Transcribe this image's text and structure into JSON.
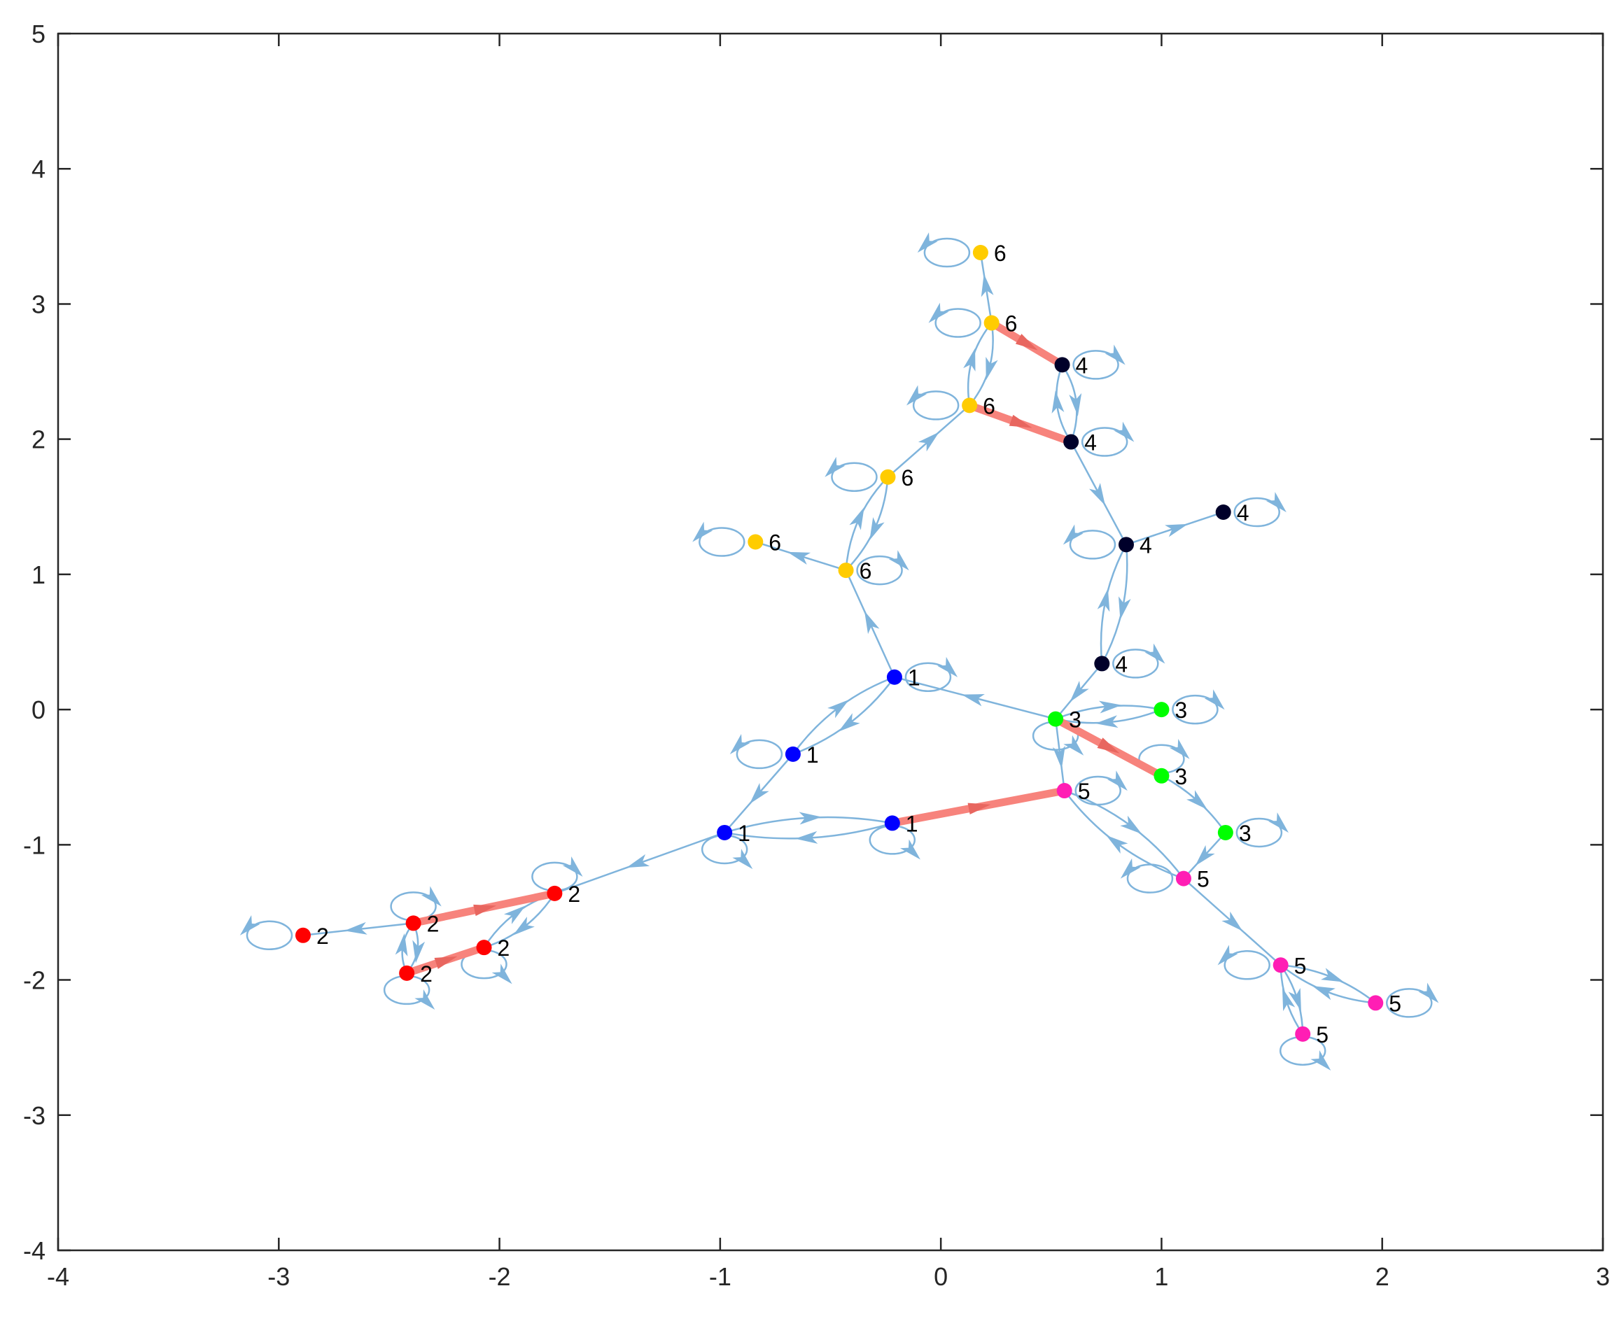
{
  "chart_data": {
    "type": "scatter",
    "xlim": [
      -4,
      3
    ],
    "ylim": [
      -4,
      5
    ],
    "x_ticks": [
      "-4",
      "-3",
      "-2",
      "-1",
      "0",
      "1",
      "2",
      "3"
    ],
    "y_ticks": [
      "-4",
      "-3",
      "-2",
      "-1",
      "0",
      "1",
      "2",
      "3",
      "4",
      "5"
    ],
    "grid": false,
    "colors": {
      "edge": "#7fb4dc",
      "highlight": "#f7837c",
      "1": "#0000ff",
      "2": "#ff0000",
      "3": "#00ff00",
      "4": "#00002a",
      "5": "#ff1eb4",
      "6": "#ffcc00"
    },
    "nodes": [
      {
        "id": "a1",
        "x": -0.21,
        "y": 0.24,
        "label": "1"
      },
      {
        "id": "a2",
        "x": -0.67,
        "y": -0.33,
        "label": "1"
      },
      {
        "id": "a3",
        "x": -0.98,
        "y": -0.91,
        "label": "1"
      },
      {
        "id": "a4",
        "x": -0.22,
        "y": -0.84,
        "label": "1"
      },
      {
        "id": "b1",
        "x": -1.75,
        "y": -1.36,
        "label": "2"
      },
      {
        "id": "b2",
        "x": -2.39,
        "y": -1.58,
        "label": "2"
      },
      {
        "id": "b3",
        "x": -2.07,
        "y": -1.76,
        "label": "2"
      },
      {
        "id": "b4",
        "x": -2.42,
        "y": -1.95,
        "label": "2"
      },
      {
        "id": "b5",
        "x": -2.89,
        "y": -1.67,
        "label": "2"
      },
      {
        "id": "c1",
        "x": 0.52,
        "y": -0.07,
        "label": "3"
      },
      {
        "id": "c2",
        "x": 1.0,
        "y": 0.0,
        "label": "3"
      },
      {
        "id": "c3",
        "x": 1.0,
        "y": -0.49,
        "label": "3"
      },
      {
        "id": "c4",
        "x": 1.29,
        "y": -0.91,
        "label": "3"
      },
      {
        "id": "d1",
        "x": 0.73,
        "y": 0.34,
        "label": "4"
      },
      {
        "id": "d2",
        "x": 0.84,
        "y": 1.22,
        "label": "4"
      },
      {
        "id": "d3",
        "x": 1.28,
        "y": 1.46,
        "label": "4"
      },
      {
        "id": "d4",
        "x": 0.59,
        "y": 1.98,
        "label": "4"
      },
      {
        "id": "d5",
        "x": 0.55,
        "y": 2.55,
        "label": "4"
      },
      {
        "id": "e1",
        "x": 0.56,
        "y": -0.6,
        "label": "5"
      },
      {
        "id": "e2",
        "x": 1.1,
        "y": -1.25,
        "label": "5"
      },
      {
        "id": "e3",
        "x": 1.54,
        "y": -1.89,
        "label": "5"
      },
      {
        "id": "e4",
        "x": 1.97,
        "y": -2.17,
        "label": "5"
      },
      {
        "id": "e5",
        "x": 1.64,
        "y": -2.4,
        "label": "5"
      },
      {
        "id": "f1",
        "x": -0.43,
        "y": 1.03,
        "label": "6"
      },
      {
        "id": "f2",
        "x": -0.84,
        "y": 1.24,
        "label": "6"
      },
      {
        "id": "f3",
        "x": -0.24,
        "y": 1.72,
        "label": "6"
      },
      {
        "id": "f4",
        "x": 0.13,
        "y": 2.25,
        "label": "6"
      },
      {
        "id": "f5",
        "x": 0.23,
        "y": 2.86,
        "label": "6"
      },
      {
        "id": "f6",
        "x": 0.18,
        "y": 3.38,
        "label": "6"
      }
    ],
    "edges": [
      {
        "from": "c1",
        "to": "a1",
        "curve": 0
      },
      {
        "from": "a1",
        "to": "a2",
        "curve": 0.15
      },
      {
        "from": "a2",
        "to": "a1",
        "curve": 0.15
      },
      {
        "from": "a2",
        "to": "a3",
        "curve": 0
      },
      {
        "from": "a3",
        "to": "a4",
        "curve": 0.12
      },
      {
        "from": "a4",
        "to": "a3",
        "curve": 0.12
      },
      {
        "from": "a3",
        "to": "b1",
        "curve": 0
      },
      {
        "from": "b1",
        "to": "b3",
        "curve": 0.18
      },
      {
        "from": "b3",
        "to": "b1",
        "curve": 0.18
      },
      {
        "from": "b2",
        "to": "b4",
        "curve": 0.3
      },
      {
        "from": "b4",
        "to": "b2",
        "curve": 0.3
      },
      {
        "from": "b2",
        "to": "b5",
        "curve": 0
      },
      {
        "from": "a1",
        "to": "f1",
        "curve": 0
      },
      {
        "from": "f1",
        "to": "f3",
        "curve": 0.18
      },
      {
        "from": "f3",
        "to": "f1",
        "curve": 0.18
      },
      {
        "from": "f1",
        "to": "f2",
        "curve": 0
      },
      {
        "from": "f3",
        "to": "f4",
        "curve": 0
      },
      {
        "from": "f4",
        "to": "f5",
        "curve": 0.22
      },
      {
        "from": "f5",
        "to": "f4",
        "curve": 0.22
      },
      {
        "from": "f5",
        "to": "f6",
        "curve": 0
      },
      {
        "from": "d5",
        "to": "d4",
        "curve": 0.25
      },
      {
        "from": "d4",
        "to": "d5",
        "curve": 0.25
      },
      {
        "from": "d4",
        "to": "d2",
        "curve": 0
      },
      {
        "from": "d2",
        "to": "d3",
        "curve": 0
      },
      {
        "from": "d2",
        "to": "d1",
        "curve": 0.15
      },
      {
        "from": "d1",
        "to": "d2",
        "curve": 0.15
      },
      {
        "from": "d1",
        "to": "c1",
        "curve": 0
      },
      {
        "from": "c1",
        "to": "c2",
        "curve": 0.15
      },
      {
        "from": "c2",
        "to": "c1",
        "curve": 0.15
      },
      {
        "from": "c3",
        "to": "c4",
        "curve": 0.12
      },
      {
        "from": "c4",
        "to": "e2",
        "curve": 0
      },
      {
        "from": "c1",
        "to": "e1",
        "curve": 0
      },
      {
        "from": "e1",
        "to": "e2",
        "curve": 0.15
      },
      {
        "from": "e2",
        "to": "e1",
        "curve": 0.15
      },
      {
        "from": "e2",
        "to": "e3",
        "curve": 0
      },
      {
        "from": "e3",
        "to": "e4",
        "curve": 0.15
      },
      {
        "from": "e4",
        "to": "e3",
        "curve": 0.15
      },
      {
        "from": "e3",
        "to": "e5",
        "curve": 0.15
      },
      {
        "from": "e5",
        "to": "e3",
        "curve": 0.15
      }
    ],
    "highlight_edges": [
      {
        "from": "a4",
        "to": "e1"
      },
      {
        "from": "c1",
        "to": "c3"
      },
      {
        "from": "b2",
        "to": "b1"
      },
      {
        "from": "b4",
        "to": "b3"
      },
      {
        "from": "f5",
        "to": "d5"
      },
      {
        "from": "f4",
        "to": "d4"
      }
    ],
    "self_loops": [
      {
        "node": "a1",
        "dir": "r"
      },
      {
        "node": "a2",
        "dir": "l"
      },
      {
        "node": "a3",
        "dir": "b"
      },
      {
        "node": "a4",
        "dir": "b"
      },
      {
        "node": "b1",
        "dir": "t"
      },
      {
        "node": "b2",
        "dir": "t"
      },
      {
        "node": "b3",
        "dir": "b"
      },
      {
        "node": "b4",
        "dir": "b"
      },
      {
        "node": "b5",
        "dir": "l"
      },
      {
        "node": "c1",
        "dir": "b"
      },
      {
        "node": "c2",
        "dir": "r"
      },
      {
        "node": "c3",
        "dir": "t"
      },
      {
        "node": "c4",
        "dir": "r"
      },
      {
        "node": "d1",
        "dir": "r"
      },
      {
        "node": "d2",
        "dir": "l"
      },
      {
        "node": "d3",
        "dir": "r"
      },
      {
        "node": "d4",
        "dir": "r"
      },
      {
        "node": "d5",
        "dir": "r"
      },
      {
        "node": "e1",
        "dir": "r"
      },
      {
        "node": "e2",
        "dir": "l"
      },
      {
        "node": "e3",
        "dir": "l"
      },
      {
        "node": "e4",
        "dir": "r"
      },
      {
        "node": "e5",
        "dir": "b"
      },
      {
        "node": "f1",
        "dir": "r"
      },
      {
        "node": "f2",
        "dir": "l"
      },
      {
        "node": "f3",
        "dir": "l"
      },
      {
        "node": "f4",
        "dir": "l"
      },
      {
        "node": "f5",
        "dir": "l"
      },
      {
        "node": "f6",
        "dir": "l"
      }
    ]
  }
}
